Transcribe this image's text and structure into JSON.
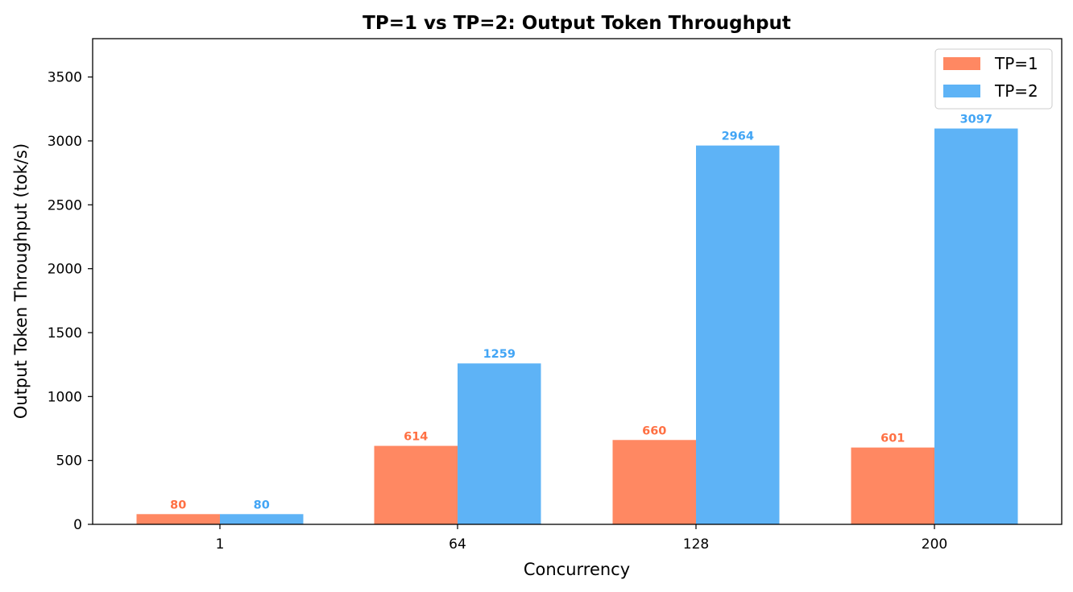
{
  "chart_data": {
    "type": "bar",
    "title": "TP=1 vs TP=2: Output Token Throughput",
    "xlabel": "Concurrency",
    "ylabel": "Output Token Throughput (tok/s)",
    "categories": [
      "1",
      "64",
      "128",
      "200"
    ],
    "series": [
      {
        "name": "TP=1",
        "values": [
          80,
          614,
          660,
          601
        ],
        "color": "#ff8862",
        "label_color": "#ff7043"
      },
      {
        "name": "TP=2",
        "values": [
          80,
          1259,
          2964,
          3097
        ],
        "color": "#5eb3f6",
        "label_color": "#42a5f5"
      }
    ],
    "ylim": [
      0,
      3800
    ],
    "yticks": [
      0,
      500,
      1000,
      1500,
      2000,
      2500,
      3000,
      3500
    ],
    "grid": false,
    "legend_position": "top-right"
  }
}
